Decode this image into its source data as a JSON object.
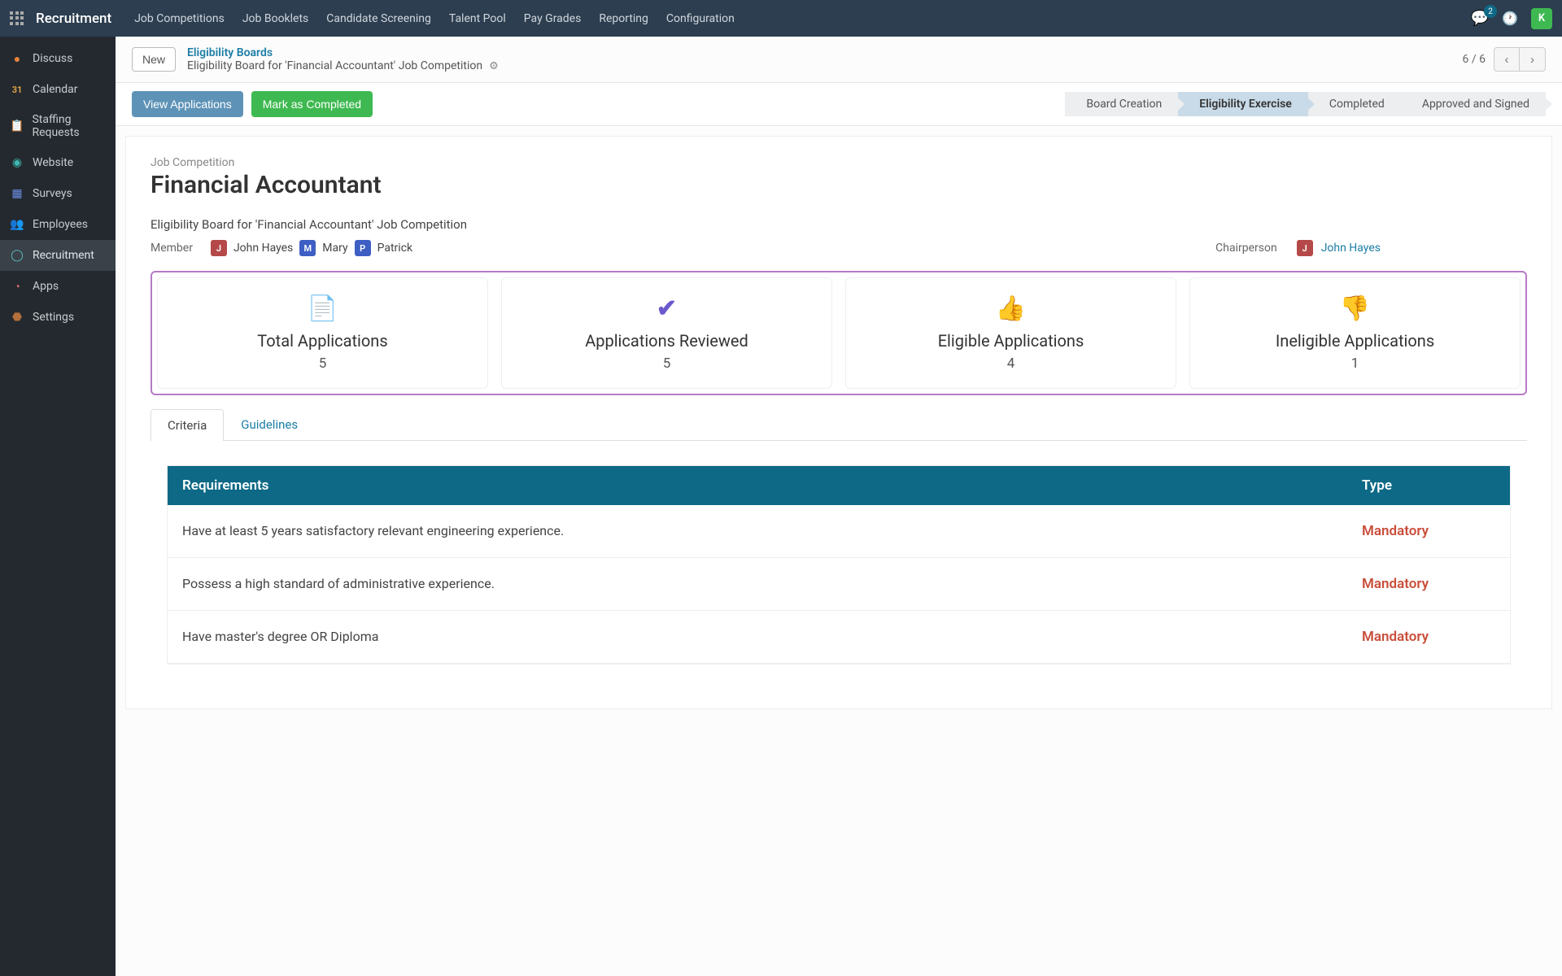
{
  "topbar": {
    "brand": "Recruitment",
    "menu": [
      "Job Competitions",
      "Job Booklets",
      "Candidate Screening",
      "Talent Pool",
      "Pay Grades",
      "Reporting",
      "Configuration"
    ],
    "chat_badge": "2",
    "avatar_initial": "K"
  },
  "sidebar": {
    "items": [
      {
        "icon": "💬",
        "label": "Discuss",
        "color": "#e8833a"
      },
      {
        "icon": "31",
        "label": "Calendar",
        "color": "#d9a34a"
      },
      {
        "icon": "📋",
        "label": "Staffing Requests",
        "color": "#f0c674"
      },
      {
        "icon": "🌐",
        "label": "Website",
        "color": "#3fb7b0"
      },
      {
        "icon": "▦",
        "label": "Surveys",
        "color": "#6b8de3"
      },
      {
        "icon": "👥",
        "label": "Employees",
        "color": "#8fa3b5"
      },
      {
        "icon": "◯",
        "label": "Recruitment",
        "color": "#5bbfbf",
        "active": true
      },
      {
        "icon": "◔",
        "label": "Apps",
        "color": "#d46a6a"
      },
      {
        "icon": "⚙",
        "label": "Settings",
        "color": "#b56f3a"
      }
    ]
  },
  "header": {
    "new_btn": "New",
    "breadcrumb_top": "Eligibility Boards",
    "breadcrumb_sub": "Eligibility Board for 'Financial Accountant' Job Competition",
    "pager": "6 / 6"
  },
  "actions": {
    "view_btn": "View Applications",
    "complete_btn": "Mark as Completed",
    "stages": [
      {
        "label": "Board Creation"
      },
      {
        "label": "Eligibility Exercise",
        "active": true
      },
      {
        "label": "Completed"
      },
      {
        "label": "Approved and Signed"
      }
    ]
  },
  "page": {
    "subtitle": "Job Competition",
    "title": "Financial Accountant",
    "description": "Eligibility Board for 'Financial Accountant' Job Competition",
    "member_label": "Member",
    "members": [
      {
        "initial": "J",
        "name": "John Hayes",
        "color": "red"
      },
      {
        "initial": "M",
        "name": "Mary",
        "color": "blue"
      },
      {
        "initial": "P",
        "name": "Patrick",
        "color": "blue"
      }
    ],
    "chair_label": "Chairperson",
    "chair_initial": "J",
    "chair_name": "John Hayes"
  },
  "stats": [
    {
      "icon": "📄",
      "label": "Total Applications",
      "value": "5"
    },
    {
      "icon": "✔",
      "icon_color": "#6a5acd",
      "label": "Applications Reviewed",
      "value": "5"
    },
    {
      "icon": "👍",
      "label": "Eligible Applications",
      "value": "4"
    },
    {
      "icon": "👎",
      "label": "Ineligible Applications",
      "value": "1"
    }
  ],
  "tabs": {
    "criteria": "Criteria",
    "guidelines": "Guidelines"
  },
  "requirements": {
    "header_req": "Requirements",
    "header_type": "Type",
    "rows": [
      {
        "text": "Have at least 5 years satisfactory relevant engineering experience.",
        "type": "Mandatory"
      },
      {
        "text": "Possess a high standard of administrative experience.",
        "type": "Mandatory"
      },
      {
        "text": "Have master's degree OR Diploma",
        "type": "Mandatory"
      }
    ]
  }
}
